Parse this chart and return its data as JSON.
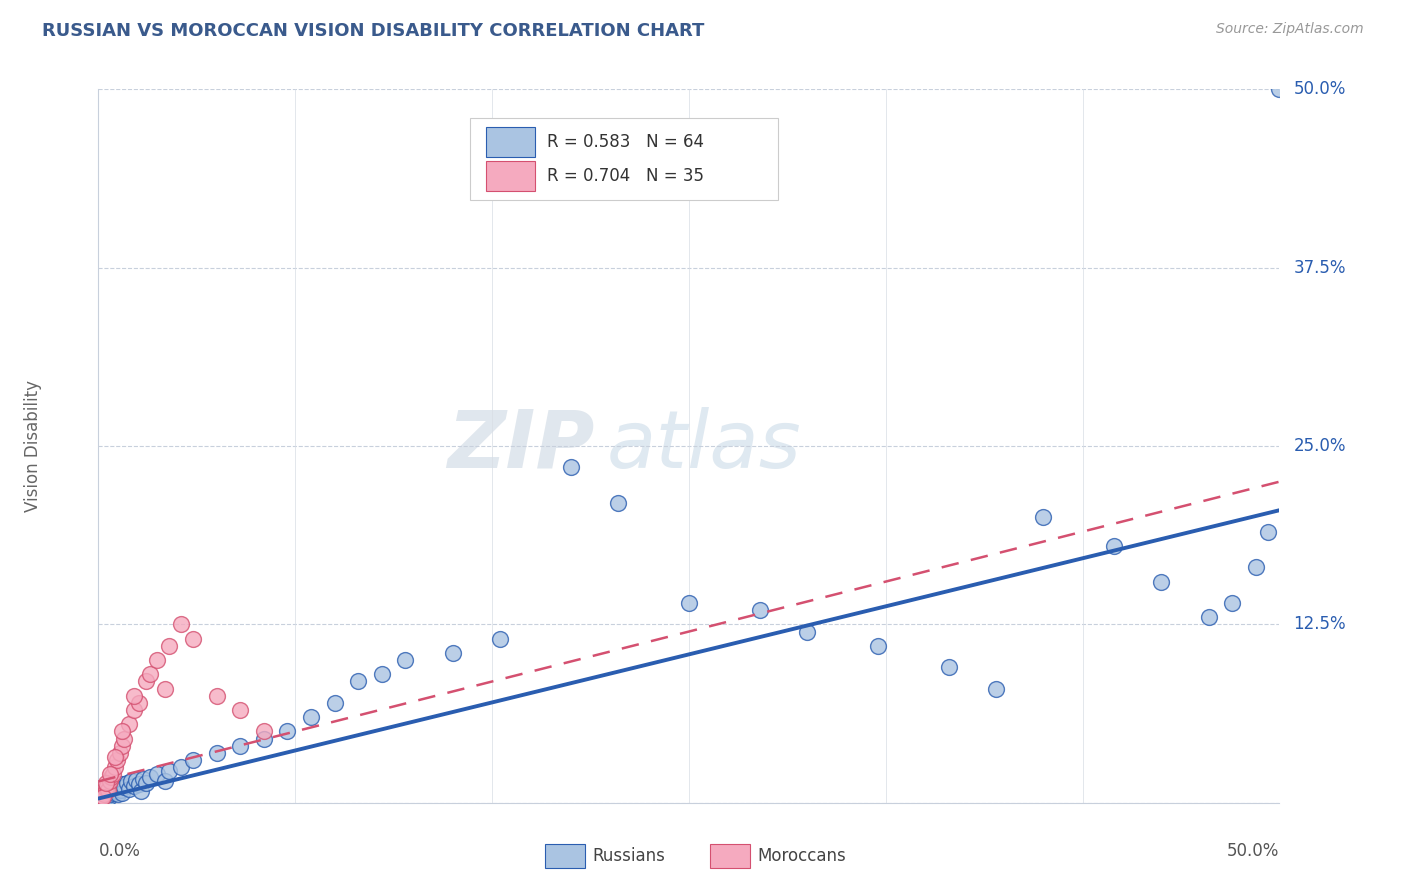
{
  "title": "RUSSIAN VS MOROCCAN VISION DISABILITY CORRELATION CHART",
  "source": "Source: ZipAtlas.com",
  "ylabel": "Vision Disability",
  "ytick_vals": [
    0.0,
    12.5,
    25.0,
    37.5,
    50.0
  ],
  "xlim": [
    0.0,
    50.0
  ],
  "ylim": [
    0.0,
    50.0
  ],
  "russian_r": "0.583",
  "russian_n": "64",
  "moroccan_r": "0.704",
  "moroccan_n": "35",
  "russian_color": "#aac4e2",
  "moroccan_color": "#f5aabf",
  "russian_line_color": "#2a5db0",
  "moroccan_line_color": "#d45070",
  "legend_russian_label": "Russians",
  "legend_moroccan_label": "Moroccans",
  "watermark_zip": "ZIP",
  "watermark_atlas": "atlas",
  "russian_x": [
    0.1,
    0.15,
    0.2,
    0.25,
    0.3,
    0.35,
    0.4,
    0.45,
    0.5,
    0.5,
    0.55,
    0.6,
    0.65,
    0.7,
    0.75,
    0.8,
    0.85,
    0.9,
    0.95,
    1.0,
    1.0,
    1.1,
    1.2,
    1.3,
    1.4,
    1.5,
    1.6,
    1.7,
    1.8,
    1.9,
    2.0,
    2.2,
    2.5,
    2.8,
    3.0,
    3.5,
    4.0,
    5.0,
    6.0,
    7.0,
    8.0,
    9.0,
    10.0,
    11.0,
    12.0,
    13.0,
    15.0,
    17.0,
    20.0,
    22.0,
    25.0,
    28.0,
    30.0,
    33.0,
    36.0,
    38.0,
    40.0,
    43.0,
    45.0,
    47.0,
    48.0,
    49.0,
    49.5,
    50.0
  ],
  "russian_y": [
    0.2,
    0.3,
    0.4,
    0.5,
    0.6,
    0.5,
    0.7,
    0.4,
    0.8,
    1.0,
    0.6,
    0.9,
    0.7,
    1.1,
    0.8,
    1.2,
    0.6,
    1.0,
    0.9,
    1.3,
    0.7,
    1.1,
    1.4,
    1.0,
    1.5,
    1.2,
    1.6,
    1.3,
    0.8,
    1.7,
    1.4,
    1.8,
    2.0,
    1.5,
    2.2,
    2.5,
    3.0,
    3.5,
    4.0,
    4.5,
    5.0,
    6.0,
    7.0,
    8.5,
    9.0,
    10.0,
    10.5,
    11.5,
    23.5,
    21.0,
    14.0,
    13.5,
    12.0,
    11.0,
    9.5,
    8.0,
    20.0,
    18.0,
    15.5,
    13.0,
    14.0,
    16.5,
    19.0,
    50.0
  ],
  "moroccan_x": [
    0.05,
    0.1,
    0.15,
    0.2,
    0.25,
    0.3,
    0.35,
    0.4,
    0.5,
    0.55,
    0.6,
    0.7,
    0.8,
    0.9,
    1.0,
    1.1,
    1.3,
    1.5,
    1.7,
    2.0,
    2.2,
    2.5,
    2.8,
    3.0,
    3.5,
    4.0,
    5.0,
    6.0,
    7.0,
    0.2,
    0.3,
    0.5,
    0.7,
    1.0,
    1.5
  ],
  "moroccan_y": [
    0.2,
    0.3,
    0.5,
    0.8,
    0.6,
    1.0,
    1.2,
    0.9,
    1.5,
    1.8,
    2.0,
    2.5,
    3.0,
    3.5,
    4.0,
    4.5,
    5.5,
    6.5,
    7.0,
    8.5,
    9.0,
    10.0,
    8.0,
    11.0,
    12.5,
    11.5,
    7.5,
    6.5,
    5.0,
    0.4,
    1.4,
    2.0,
    3.2,
    5.0,
    7.5
  ],
  "russian_trendline_x0": 0.0,
  "russian_trendline_y0": 0.3,
  "russian_trendline_x1": 50.0,
  "russian_trendline_y1": 20.5,
  "moroccan_trendline_x0": 0.0,
  "moroccan_trendline_y0": 1.5,
  "moroccan_trendline_x1": 50.0,
  "moroccan_trendline_y1": 22.5
}
